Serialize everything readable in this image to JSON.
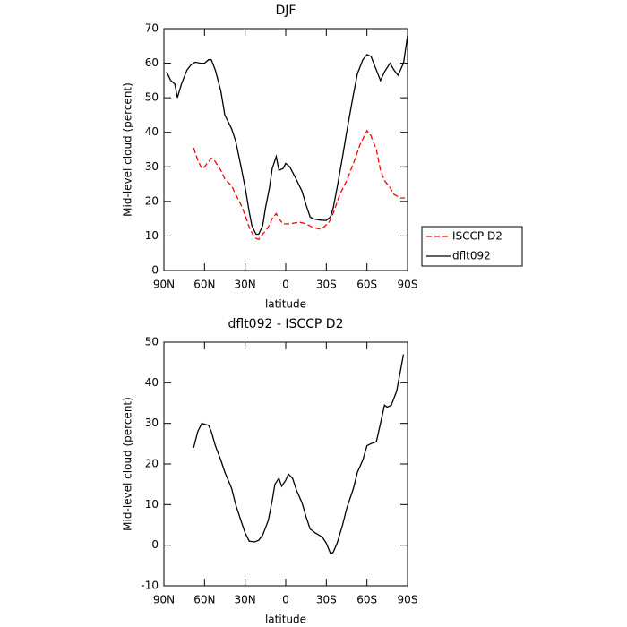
{
  "chart_data": [
    {
      "type": "line",
      "title": "DJF",
      "x_label": "latitude",
      "y_label": "Mid-level cloud (percent)",
      "xlim": [
        90,
        -90
      ],
      "ylim": [
        0,
        70
      ],
      "xticks": [
        {
          "value": 90,
          "label": "90N"
        },
        {
          "value": 60,
          "label": "60N"
        },
        {
          "value": 30,
          "label": "30N"
        },
        0,
        {
          "value": -30,
          "label": "30S"
        },
        {
          "value": -60,
          "label": "60S"
        },
        {
          "value": -90,
          "label": "90S"
        }
      ],
      "yticks": [
        0,
        10,
        20,
        30,
        40,
        50,
        60,
        70
      ],
      "legend": "outside-right",
      "series": [
        {
          "name": "ISCCP D2",
          "color": "#ff0000",
          "style": "dashed",
          "x": [
            68,
            65,
            62,
            60,
            57,
            55,
            52,
            48,
            45,
            40,
            37,
            33,
            30,
            27,
            23,
            20,
            17,
            13,
            10,
            7,
            5,
            2,
            -3,
            -10,
            -15,
            -20,
            -25,
            -28,
            -32,
            -35,
            -40,
            -45,
            -50,
            -55,
            -60,
            -63,
            -67,
            -70,
            -73,
            -77,
            -80,
            -85,
            -88
          ],
          "values": [
            35.5,
            32,
            29.5,
            30,
            31.5,
            32.5,
            31.5,
            29,
            26.5,
            24.5,
            22,
            19,
            16,
            12.5,
            9.5,
            9,
            10.5,
            12.5,
            15,
            16.5,
            15,
            13.5,
            13.5,
            14,
            13.5,
            12.5,
            12,
            12.5,
            14,
            16.5,
            22,
            26,
            31,
            36.5,
            40.5,
            39,
            35,
            29,
            26,
            24,
            22,
            21,
            21
          ]
        },
        {
          "name": "dflt092",
          "color": "#000000",
          "style": "solid",
          "x": [
            88,
            85,
            82,
            80,
            77,
            73,
            70,
            67,
            63,
            60,
            57,
            55,
            52,
            48,
            45,
            40,
            37,
            33,
            30,
            27,
            25,
            22,
            20,
            17,
            15,
            12,
            10,
            7,
            5,
            2,
            0,
            -3,
            -7,
            -12,
            -15,
            -18,
            -20,
            -25,
            -30,
            -33,
            -35,
            -38,
            -42,
            -45,
            -50,
            -53,
            -57,
            -60,
            -63,
            -67,
            -70,
            -73,
            -77,
            -80,
            -83,
            -87,
            -90
          ],
          "values": [
            57.5,
            55,
            54,
            50,
            54,
            58,
            59.5,
            60.3,
            60,
            60,
            61,
            61,
            58,
            52,
            45,
            41,
            37.5,
            30,
            24,
            17,
            13,
            10.5,
            10.5,
            13,
            18,
            24,
            29.5,
            33,
            29,
            29.5,
            31,
            30,
            27,
            23,
            19,
            15.5,
            15,
            14.6,
            14.5,
            15.5,
            18,
            24,
            33,
            40,
            51,
            57,
            61,
            62.5,
            62,
            58,
            55,
            57.5,
            60,
            58,
            56.5,
            60,
            68
          ]
        }
      ]
    },
    {
      "type": "line",
      "title": "dflt092 - ISCCP D2",
      "x_label": "latitude",
      "y_label": "Mid-level cloud (percent)",
      "xlim": [
        90,
        -90
      ],
      "ylim": [
        -10,
        50
      ],
      "xticks": [
        {
          "value": 90,
          "label": "90N"
        },
        {
          "value": 60,
          "label": "60N"
        },
        {
          "value": 30,
          "label": "30N"
        },
        0,
        {
          "value": -30,
          "label": "30S"
        },
        {
          "value": -60,
          "label": "60S"
        },
        {
          "value": -90,
          "label": "90S"
        }
      ],
      "yticks": [
        -10,
        0,
        10,
        20,
        30,
        40,
        50
      ],
      "series": [
        {
          "color": "#000000",
          "style": "solid",
          "x": [
            68,
            65,
            62,
            57,
            55,
            52,
            48,
            45,
            40,
            37,
            33,
            30,
            27,
            23,
            20,
            17,
            13,
            10,
            8,
            5,
            3,
            0,
            -2,
            -5,
            -8,
            -12,
            -15,
            -18,
            -22,
            -27,
            -30,
            -33,
            -35,
            -38,
            -42,
            -45,
            -50,
            -53,
            -57,
            -60,
            -63,
            -67,
            -70,
            -73,
            -75,
            -78,
            -82,
            -87
          ],
          "values": [
            24,
            28,
            30,
            29.5,
            28,
            24.5,
            21,
            18,
            14,
            10,
            6,
            3,
            1,
            0.8,
            1.2,
            2.5,
            6,
            11,
            15,
            16.5,
            14.5,
            16,
            17.5,
            16.5,
            13.5,
            10.5,
            7,
            4,
            3,
            2,
            0.5,
            -2,
            -1.8,
            0.5,
            5,
            9,
            14,
            18,
            21,
            24.5,
            25,
            25.5,
            30,
            34.5,
            34,
            34.5,
            38,
            47
          ]
        }
      ]
    }
  ]
}
